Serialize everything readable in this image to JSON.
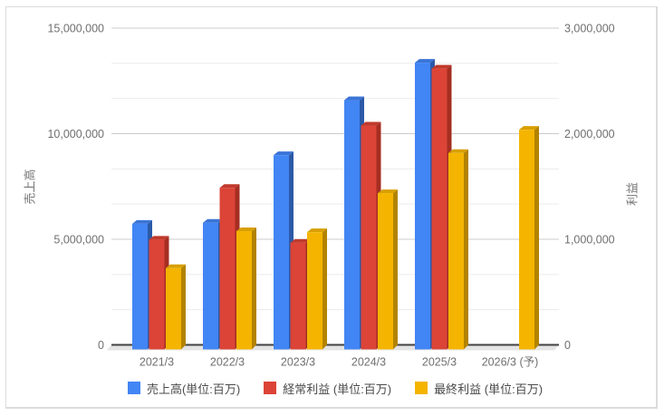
{
  "chart_data": {
    "type": "bar",
    "variant": "3d-grouped-columns",
    "title": "",
    "categories": [
      "2021/3",
      "2022/3",
      "2023/3",
      "2024/3",
      "2025/3",
      "2026/3 (予)"
    ],
    "series": [
      {
        "name": "sales",
        "label": "売上高(単位:百万)",
        "axis": "left",
        "color": "#4285F4",
        "color_top": "#3A74D6",
        "color_side": "#2C5AA8",
        "values": [
          5950000,
          6000000,
          9200000,
          11800000,
          13580000,
          null
        ]
      },
      {
        "name": "ordinary-profit",
        "label": "経常利益 (単位:百万)",
        "axis": "right",
        "color": "#DB4437",
        "color_top": "#C03A2D",
        "color_side": "#A52E22",
        "values": [
          1040000,
          1530000,
          1010000,
          2120000,
          2660000,
          null
        ]
      },
      {
        "name": "net-profit",
        "label": "最終利益 (単位:百万)",
        "axis": "right",
        "color": "#F4B400",
        "color_top": "#D89F00",
        "color_side": "#B38300",
        "values": [
          770000,
          1120000,
          1110000,
          1480000,
          1860000,
          2080000
        ]
      }
    ],
    "axes": {
      "left": {
        "title": "売上高",
        "min": 0,
        "max": 15000000,
        "tick_labels": [
          "0",
          "5,000,000",
          "10,000,000",
          "15,000,000"
        ]
      },
      "right": {
        "title": "利益",
        "min": 0,
        "max": 3000000,
        "tick_labels": [
          "0",
          "1,000,000",
          "2,000,000",
          "3,000,000"
        ]
      }
    },
    "legend": {
      "position": "bottom"
    },
    "grid": {
      "major_lines": 4,
      "minors_between_majors": 2
    }
  },
  "colors": {
    "background": "#ffffff",
    "card_border": "#dcdcdc",
    "axis_line": "#424242",
    "floor": "#e4e4e4",
    "gridline_major": "#cccccc",
    "gridline_minor": "#ebebeb",
    "tick_text": "#6f6f6f",
    "legend_text": "#4a4a4a",
    "axis_title_text": "#757575"
  }
}
